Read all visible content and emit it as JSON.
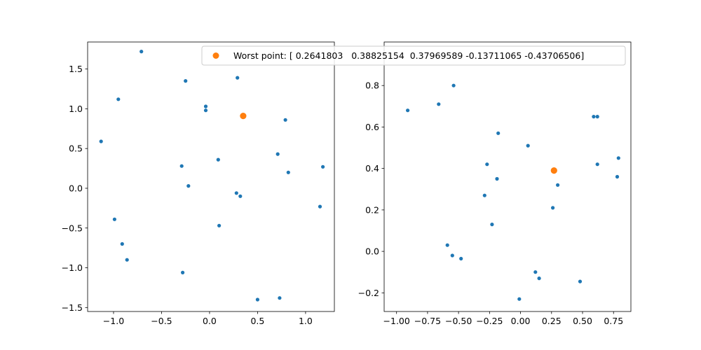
{
  "chart_data": [
    {
      "type": "scatter",
      "xlim": [
        -1.27,
        1.3
      ],
      "ylim": [
        -1.55,
        1.84
      ],
      "xticks": [
        -1.0,
        -0.5,
        0.0,
        0.5,
        1.0
      ],
      "xtick_labels": [
        "−1.0",
        "−0.5",
        "0.0",
        "0.5",
        "1.0"
      ],
      "yticks": [
        -1.5,
        -1.0,
        -0.5,
        0.0,
        0.5,
        1.0,
        1.5
      ],
      "ytick_labels": [
        "−1.5",
        "−1.0",
        "−0.5",
        "0.0",
        "0.5",
        "1.0",
        "1.5"
      ],
      "grid": false,
      "series": [
        {
          "color": "#1f77b4",
          "points": [
            [
              -0.71,
              1.72
            ],
            [
              -0.25,
              1.35
            ],
            [
              0.29,
              1.39
            ],
            [
              -0.95,
              1.12
            ],
            [
              -0.04,
              1.03
            ],
            [
              -0.04,
              0.98
            ],
            [
              0.79,
              0.86
            ],
            [
              -1.13,
              0.59
            ],
            [
              0.71,
              0.43
            ],
            [
              0.09,
              0.36
            ],
            [
              -0.29,
              0.28
            ],
            [
              1.18,
              0.27
            ],
            [
              0.82,
              0.2
            ],
            [
              -0.22,
              0.03
            ],
            [
              0.28,
              -0.06
            ],
            [
              0.32,
              -0.1
            ],
            [
              1.15,
              -0.23
            ],
            [
              -0.99,
              -0.39
            ],
            [
              0.1,
              -0.47
            ],
            [
              -0.91,
              -0.7
            ],
            [
              -0.86,
              -0.9
            ],
            [
              -0.28,
              -1.06
            ],
            [
              0.5,
              -1.4
            ],
            [
              0.73,
              -1.38
            ]
          ]
        },
        {
          "name": "Worst point: [ 0.2641803   0.38825154  0.37969589 -0.13711065 -0.43706506]",
          "color": "#ff7f0e",
          "points": [
            [
              0.35,
              0.91
            ]
          ]
        }
      ]
    },
    {
      "type": "scatter",
      "xlim": [
        -1.1,
        0.89
      ],
      "ylim": [
        -0.29,
        1.01
      ],
      "xticks": [
        -1.0,
        -0.75,
        -0.5,
        -0.25,
        0.0,
        0.25,
        0.5,
        0.75
      ],
      "xtick_labels": [
        "−1.00",
        "−0.75",
        "−0.50",
        "−0.25",
        "0.00",
        "0.25",
        "0.50",
        "0.75"
      ],
      "yticks": [
        -0.2,
        0.0,
        0.2,
        0.4,
        0.6,
        0.8
      ],
      "ytick_labels": [
        "−0.2",
        "0.0",
        "0.2",
        "0.4",
        "0.6",
        "0.8"
      ],
      "grid": false,
      "series": [
        {
          "color": "#1f77b4",
          "points": [
            [
              -0.54,
              0.8
            ],
            [
              -0.66,
              0.71
            ],
            [
              -0.91,
              0.68
            ],
            [
              0.59,
              0.65
            ],
            [
              0.62,
              0.65
            ],
            [
              -0.18,
              0.57
            ],
            [
              0.06,
              0.51
            ],
            [
              0.79,
              0.45
            ],
            [
              0.62,
              0.42
            ],
            [
              -0.27,
              0.42
            ],
            [
              0.78,
              0.36
            ],
            [
              -0.19,
              0.35
            ],
            [
              0.3,
              0.32
            ],
            [
              -0.29,
              0.27
            ],
            [
              0.26,
              0.21
            ],
            [
              -0.23,
              0.13
            ],
            [
              -0.59,
              0.03
            ],
            [
              -0.55,
              -0.02
            ],
            [
              -0.48,
              -0.035
            ],
            [
              0.12,
              -0.1
            ],
            [
              0.15,
              -0.13
            ],
            [
              0.48,
              -0.145
            ],
            [
              -0.01,
              -0.23
            ]
          ]
        },
        {
          "name": "Worst point: [ 0.2641803   0.38825154  0.37969589 -0.13711065 -0.43706506]",
          "color": "#ff7f0e",
          "points": [
            [
              0.27,
              0.39
            ]
          ]
        }
      ]
    }
  ],
  "legend": {
    "label": "Worst point: [ 0.2641803   0.38825154  0.37969589 -0.13711065 -0.43706506]",
    "marker_color": "#ff7f0e",
    "placement": "top-center"
  }
}
